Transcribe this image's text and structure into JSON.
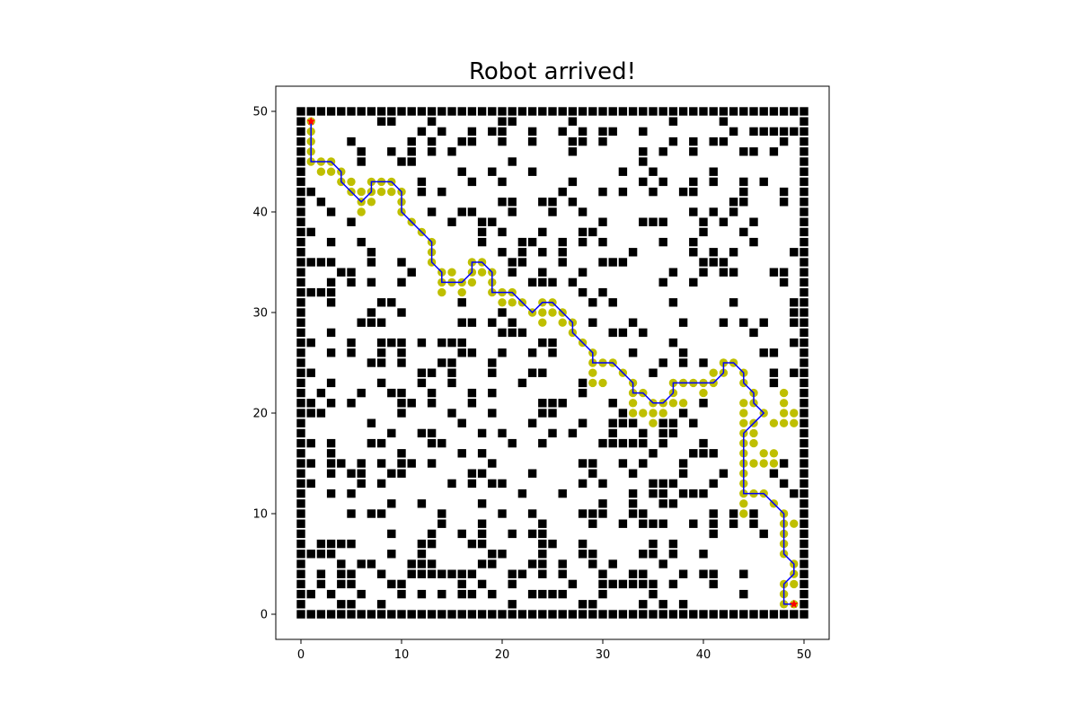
{
  "chart_data": {
    "type": "scatter",
    "title": "Robot arrived!",
    "xlabel": "",
    "ylabel": "",
    "xlim": [
      -2.5,
      52.5
    ],
    "ylim": [
      -2.5,
      52.5
    ],
    "xticks": [
      "0",
      "10",
      "20",
      "30",
      "40",
      "50"
    ],
    "yticks": [
      "0",
      "10",
      "20",
      "30",
      "40",
      "50"
    ],
    "grid": false,
    "legend": "none",
    "colors": {
      "obstacle": "#000000",
      "visited": "#bfbf00",
      "path": "#0000ff",
      "start_goal": "#ff0000"
    },
    "grid_size": 51,
    "start": [
      1,
      49
    ],
    "goal": [
      49,
      1
    ],
    "path": [
      [
        1,
        49
      ],
      [
        1,
        48
      ],
      [
        1,
        47
      ],
      [
        1,
        46
      ],
      [
        1,
        45
      ],
      [
        2,
        45
      ],
      [
        3,
        45
      ],
      [
        4,
        44
      ],
      [
        4,
        43
      ],
      [
        5,
        42
      ],
      [
        6,
        41
      ],
      [
        7,
        42
      ],
      [
        7,
        43
      ],
      [
        8,
        43
      ],
      [
        9,
        43
      ],
      [
        10,
        42
      ],
      [
        10,
        41
      ],
      [
        10,
        40
      ],
      [
        11,
        39
      ],
      [
        12,
        38
      ],
      [
        13,
        37
      ],
      [
        13,
        36
      ],
      [
        13,
        35
      ],
      [
        14,
        34
      ],
      [
        14,
        33
      ],
      [
        15,
        33
      ],
      [
        16,
        33
      ],
      [
        17,
        34
      ],
      [
        17,
        35
      ],
      [
        18,
        35
      ],
      [
        19,
        34
      ],
      [
        19,
        33
      ],
      [
        19,
        32
      ],
      [
        20,
        32
      ],
      [
        21,
        32
      ],
      [
        22,
        31
      ],
      [
        23,
        30
      ],
      [
        24,
        31
      ],
      [
        25,
        31
      ],
      [
        26,
        30
      ],
      [
        27,
        29
      ],
      [
        27,
        28
      ],
      [
        28,
        27
      ],
      [
        29,
        26
      ],
      [
        29,
        25
      ],
      [
        30,
        25
      ],
      [
        31,
        25
      ],
      [
        32,
        24
      ],
      [
        33,
        23
      ],
      [
        33,
        22
      ],
      [
        34,
        22
      ],
      [
        35,
        21
      ],
      [
        36,
        21
      ],
      [
        37,
        22
      ],
      [
        37,
        23
      ],
      [
        38,
        23
      ],
      [
        39,
        23
      ],
      [
        40,
        23
      ],
      [
        41,
        23
      ],
      [
        42,
        24
      ],
      [
        42,
        25
      ],
      [
        43,
        25
      ],
      [
        44,
        24
      ],
      [
        44,
        23
      ],
      [
        45,
        22
      ],
      [
        45,
        21
      ],
      [
        46,
        20
      ],
      [
        45,
        19
      ],
      [
        44,
        18
      ],
      [
        44,
        17
      ],
      [
        44,
        16
      ],
      [
        44,
        15
      ],
      [
        44,
        14
      ],
      [
        44,
        13
      ],
      [
        44,
        12
      ],
      [
        45,
        12
      ],
      [
        46,
        12
      ],
      [
        47,
        11
      ],
      [
        48,
        10
      ],
      [
        48,
        9
      ],
      [
        48,
        8
      ],
      [
        48,
        7
      ],
      [
        48,
        6
      ],
      [
        49,
        5
      ],
      [
        49,
        4
      ],
      [
        48,
        3
      ],
      [
        48,
        2
      ],
      [
        48,
        1
      ],
      [
        49,
        1
      ]
    ],
    "visited_extra": [
      [
        2,
        44
      ],
      [
        3,
        44
      ],
      [
        5,
        43
      ],
      [
        6,
        42
      ],
      [
        6,
        40
      ],
      [
        7,
        41
      ],
      [
        8,
        42
      ],
      [
        9,
        42
      ],
      [
        14,
        32
      ],
      [
        15,
        34
      ],
      [
        16,
        32
      ],
      [
        17,
        33
      ],
      [
        18,
        34
      ],
      [
        20,
        31
      ],
      [
        21,
        31
      ],
      [
        24,
        30
      ],
      [
        24,
        29
      ],
      [
        25,
        30
      ],
      [
        26,
        29
      ],
      [
        29,
        24
      ],
      [
        29,
        23
      ],
      [
        30,
        23
      ],
      [
        33,
        21
      ],
      [
        33,
        20
      ],
      [
        34,
        20
      ],
      [
        35,
        20
      ],
      [
        35,
        19
      ],
      [
        36,
        20
      ],
      [
        37,
        21
      ],
      [
        38,
        21
      ],
      [
        40,
        22
      ],
      [
        41,
        24
      ],
      [
        44,
        21
      ],
      [
        44,
        20
      ],
      [
        44,
        19
      ],
      [
        45,
        18
      ],
      [
        45,
        17
      ],
      [
        46,
        15
      ],
      [
        45,
        15
      ],
      [
        46,
        16
      ],
      [
        47,
        16
      ],
      [
        47,
        15
      ],
      [
        48,
        20
      ],
      [
        48,
        21
      ],
      [
        48,
        22
      ],
      [
        49,
        20
      ],
      [
        49,
        19
      ],
      [
        44,
        11
      ],
      [
        44,
        10
      ],
      [
        49,
        9
      ],
      [
        49,
        3
      ],
      [
        48,
        19
      ],
      [
        47,
        19
      ]
    ],
    "obstacle_density": 0.24,
    "obstacle_seed": 7
  }
}
